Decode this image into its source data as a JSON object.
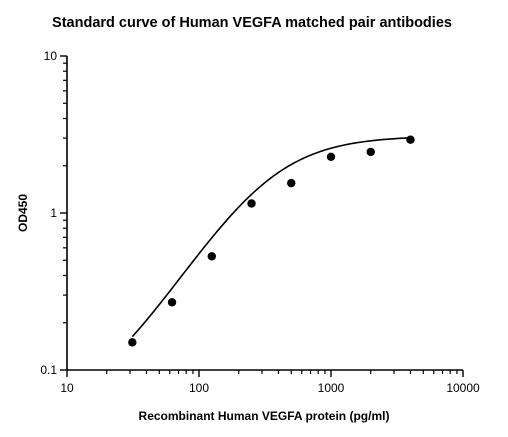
{
  "chart_data": {
    "type": "scatter",
    "title": "Standard curve of Human VEGFA matched pair antibodies",
    "xlabel": "Recombinant Human VEGFA protein (pg/ml)",
    "ylabel": "OD450",
    "xscale": "log",
    "yscale": "log",
    "xlim": [
      10,
      10000
    ],
    "ylim": [
      0.1,
      10
    ],
    "xticks": [
      "10",
      "100",
      "1000",
      "10000"
    ],
    "yticks": [
      "0.1",
      "1",
      "10"
    ],
    "grid": false,
    "legend": "none",
    "series": [
      {
        "x": [
          31.25,
          62.5,
          125,
          250,
          500,
          1000,
          2000,
          4000
        ],
        "y": [
          0.15,
          0.27,
          0.53,
          1.15,
          1.55,
          2.28,
          2.45,
          2.93
        ]
      }
    ],
    "fit_curve": {
      "model": "4PL",
      "bottom": 0.05,
      "top": 3.1,
      "ec50": 320,
      "hill": 1.4
    }
  }
}
